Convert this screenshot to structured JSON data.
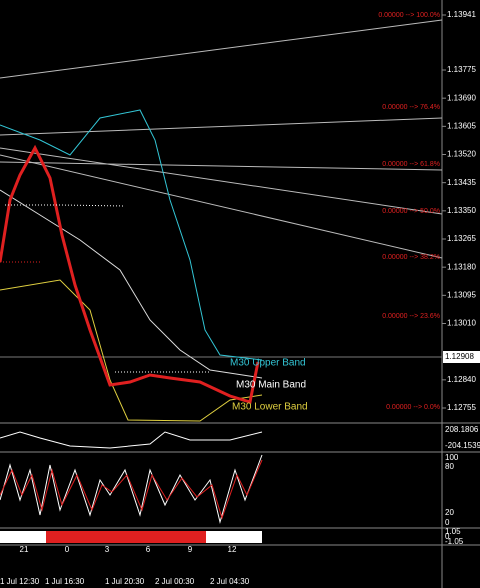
{
  "price_axis": {
    "ticks": [
      "1.13941",
      "1.13775",
      "1.13690",
      "1.13605",
      "1.13520",
      "1.13435",
      "1.13350",
      "1.13265",
      "1.13180",
      "1.13095",
      "1.13010",
      "1.12840",
      "1.12755"
    ],
    "current": "1.12908"
  },
  "fib_levels": [
    "0.00000 --> 100.0%",
    "0.00000 --> 76.4%",
    "0.00000 --> 61.8%",
    "0.00000 --> 50.0%",
    "0.00000 --> 38.2%",
    "0.00000 --> 23.6%",
    "0.00000 --> 0.0%"
  ],
  "bands": {
    "upper": "M30 Upper Band",
    "main": "M30 Main Band",
    "lower": "M30 Lower Band"
  },
  "cci_axis": {
    "top": "208.1806",
    "bottom": "-204.15392"
  },
  "stoch_axis": [
    "100",
    "80",
    "20",
    "0"
  ],
  "bar_axis": [
    "1.05",
    "0",
    "-1.05"
  ],
  "hours": [
    "21",
    "0",
    "3",
    "6",
    "9",
    "12"
  ],
  "dates": [
    "1 Jul 12:30",
    "1 Jul 16:30",
    "1 Jul 20:30",
    "2 Jul 00:30",
    "2 Jul 04:30"
  ]
}
